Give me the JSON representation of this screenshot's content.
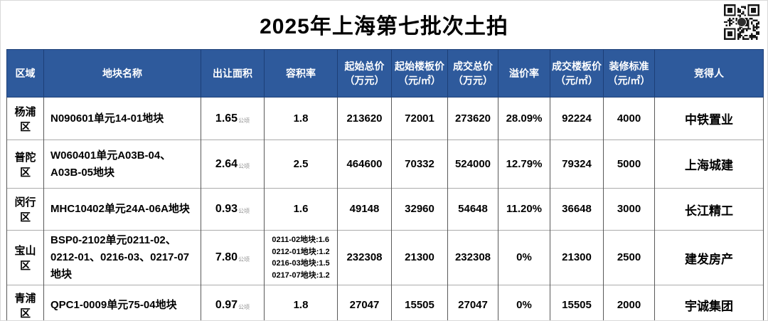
{
  "title": "2025年上海第七批次土拍",
  "colors": {
    "header_bg": "#2e5a9c",
    "header_text": "#ffffff",
    "unit_text": "#8c8c8c"
  },
  "qr_icon": "qr-code",
  "table": {
    "headers": [
      "区域",
      "地块名称",
      "出让面积",
      "容积率",
      "起始总价\n（万元）",
      "起始楼板价\n（元/㎡）",
      "成交总价\n（万元）",
      "溢价率",
      "成交楼板价\n（元/㎡）",
      "装修标准\n（元/㎡）",
      "竞得人"
    ],
    "rows": [
      {
        "region": "杨浦区",
        "plot_name": "N090601单元14-01地块",
        "area": "1.65",
        "area_unit": "公顷",
        "far": "1.8",
        "start_total": "213620",
        "start_floor": "72001",
        "deal_total": "273620",
        "premium": "28.09%",
        "deal_floor": "92224",
        "decoration": "4000",
        "winner": "中铁置业"
      },
      {
        "region": "普陀区",
        "plot_name": "W060401单元A03B-04、A03B-05地块",
        "area": "2.64",
        "area_unit": "公顷",
        "far": "2.5",
        "start_total": "464600",
        "start_floor": "70332",
        "deal_total": "524000",
        "premium": "12.79%",
        "deal_floor": "79324",
        "decoration": "5000",
        "winner": "上海城建"
      },
      {
        "region": "闵行区",
        "plot_name": "MHC10402单元24A-06A地块",
        "area": "0.93",
        "area_unit": "公顷",
        "far": "1.6",
        "start_total": "49148",
        "start_floor": "32960",
        "deal_total": "54648",
        "premium": "11.20%",
        "deal_floor": "36648",
        "decoration": "3000",
        "winner": "长江精工"
      },
      {
        "region": "宝山区",
        "plot_name": "BSP0-2102单元0211-02、0212-01、0216-03、0217-07地块",
        "area": "7.80",
        "area_unit": "公顷",
        "far": "",
        "far_lines": [
          "0211-02地块:1.6",
          "0212-01地块:1.2",
          "0216-03地块:1.5",
          "0217-07地块:1.2"
        ],
        "start_total": "232308",
        "start_floor": "21300",
        "deal_total": "232308",
        "premium": "0%",
        "deal_floor": "21300",
        "decoration": "2500",
        "winner": "建发房产"
      },
      {
        "region": "青浦区",
        "plot_name": "QPC1-0009单元75-04地块",
        "area": "0.97",
        "area_unit": "公顷",
        "far": "1.8",
        "start_total": "27047",
        "start_floor": "15505",
        "deal_total": "27047",
        "premium": "0%",
        "deal_floor": "15505",
        "decoration": "2000",
        "winner": "宇诚集团"
      }
    ]
  }
}
